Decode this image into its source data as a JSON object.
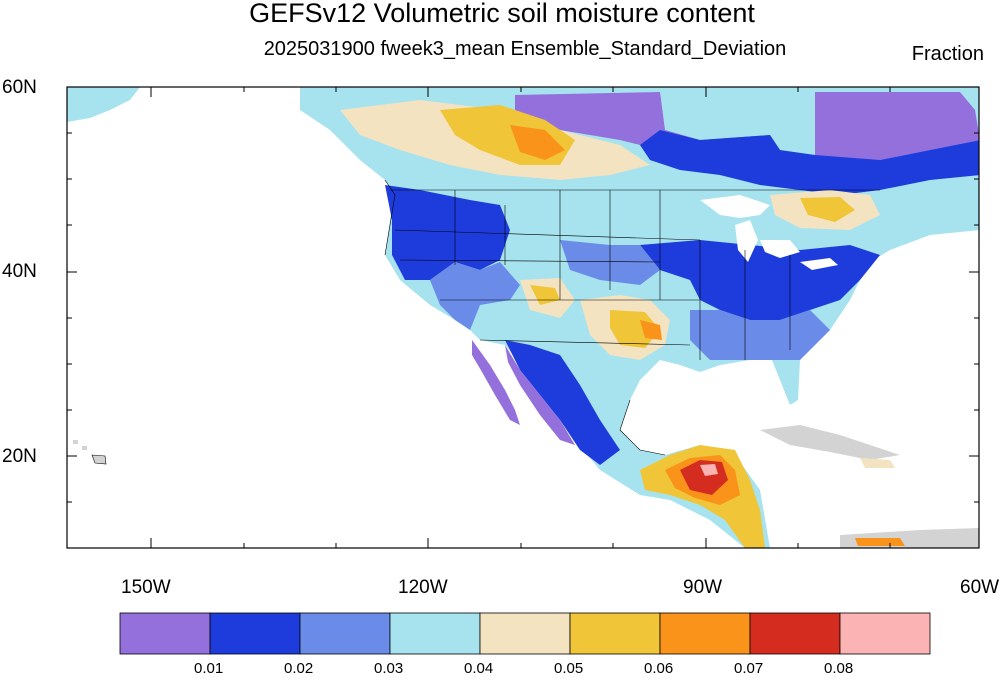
{
  "title": "GEFSv12 Volumetric soil moisture content",
  "subtitle": "2025031900 fweek3_mean Ensemble_Standard_Deviation",
  "units": "Fraction",
  "lat_labels": [
    "60N",
    "40N",
    "20N"
  ],
  "lon_labels": [
    "150W",
    "120W",
    "90W",
    "60W"
  ],
  "colorbar": {
    "colors": [
      "#9370DB",
      "#1E3CDC",
      "#6A8BE8",
      "#A6E3EE",
      "#F4E3C0",
      "#F0C537",
      "#F9931A",
      "#D42D1F",
      "#FCB3B3"
    ],
    "labels": [
      "0.01",
      "0.02",
      "0.03",
      "0.04",
      "0.05",
      "0.06",
      "0.07",
      "0.08"
    ]
  }
}
